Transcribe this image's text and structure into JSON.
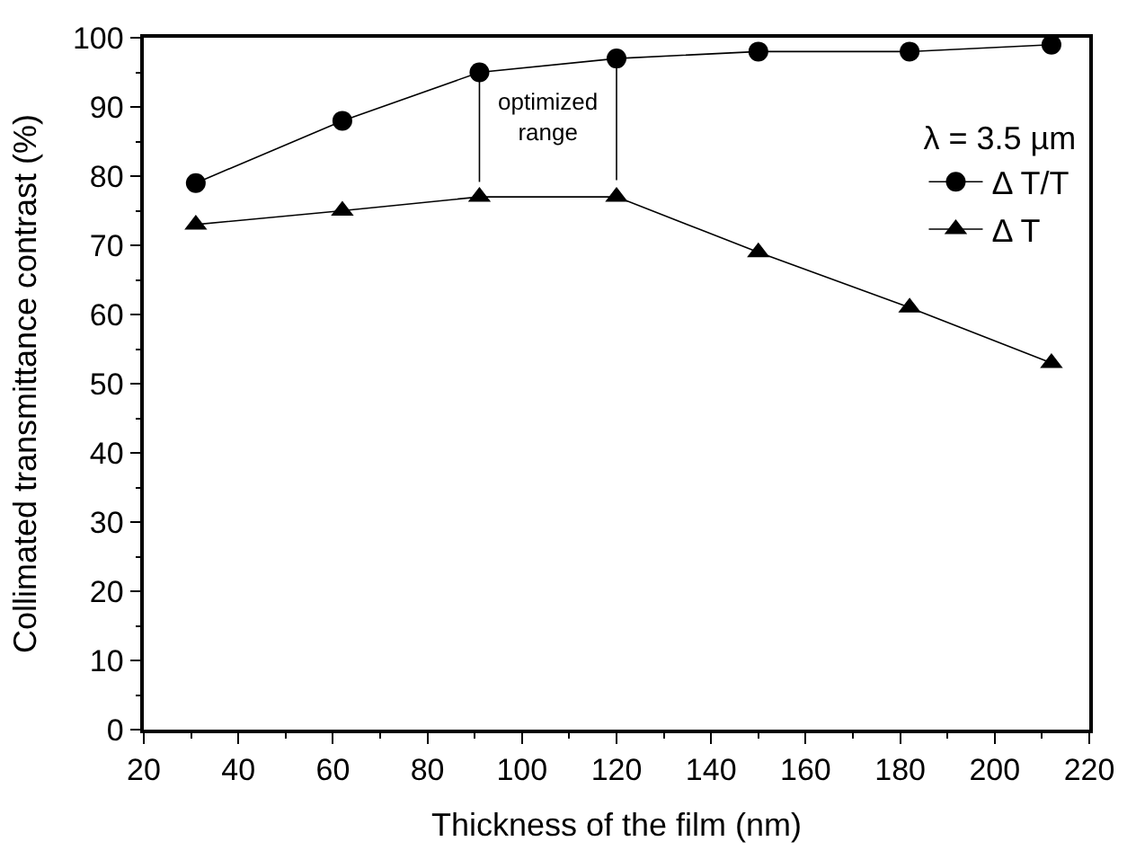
{
  "chart_data": {
    "type": "line",
    "xlabel": "Thickness of the film (nm)",
    "ylabel": "Collimated transmittance contrast (%)",
    "legend_title": "λ = 3.5 µm",
    "legend": "top right",
    "x": [
      31,
      62,
      91,
      120,
      150,
      182,
      212
    ],
    "series": [
      {
        "name": "Δ T/T",
        "color": "#000000",
        "marker": "circle",
        "values": [
          79,
          88,
          95,
          97,
          98,
          98,
          99
        ]
      },
      {
        "name": "Δ T",
        "color": "#000000",
        "marker": "triangle",
        "values": [
          73,
          75,
          77,
          77,
          69,
          61,
          53
        ]
      }
    ],
    "ref_lines": [
      {
        "axis": "x",
        "value": 91
      },
      {
        "axis": "x",
        "value": 120
      }
    ],
    "annotations": [
      "optimized range"
    ],
    "xlim": [
      20,
      220
    ],
    "xticks": [
      20,
      40,
      60,
      80,
      100,
      120,
      140,
      160,
      180,
      200,
      220
    ],
    "ylim": [
      0,
      100
    ],
    "yticks": [
      0,
      10,
      20,
      30,
      40,
      50,
      60,
      70,
      80,
      90,
      100
    ],
    "line_style": "solid"
  }
}
